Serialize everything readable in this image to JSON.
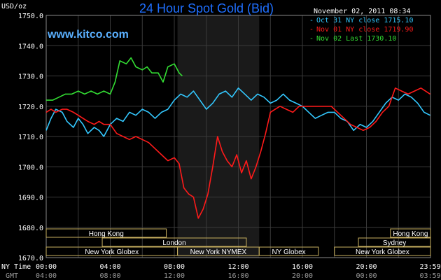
{
  "header": {
    "title": "24 Hour Spot Gold (Bid)",
    "site": "www.kitco.com",
    "timestamp": "November 02, 2011 08:34",
    "y_unit": "USD/oz"
  },
  "colors": {
    "background": "#000000",
    "grid": "#3a3a3a",
    "axis_text": "#ffffff",
    "title": "#1f6fff",
    "site": "#5ab0ff",
    "session_shade": "#1a1a1a",
    "session_border": "#c8b060"
  },
  "chart_data": {
    "type": "line",
    "title": "24 Hour Spot Gold (Bid)",
    "ylabel": "USD/oz",
    "ylim": [
      1670,
      1750
    ],
    "yticks": [
      "1670.0",
      "1680.0",
      "1690.0",
      "1700.0",
      "1710.0",
      "1720.0",
      "1730.0",
      "1740.0",
      "1750.0"
    ],
    "xlim": [
      0,
      24
    ],
    "x_row_label_ny": "NY Time",
    "x_row_label_gmt": "GMT",
    "xticks_ny": [
      "00:00",
      "04:00",
      "08:00",
      "12:00",
      "16:00",
      "20:00",
      "23:59"
    ],
    "xticks_gmt": [
      "04:00",
      "08:00",
      "12:00",
      "16:00",
      "20:00",
      "00:00",
      "03:59"
    ],
    "xtick_hours": [
      0,
      4,
      8,
      12,
      16,
      20,
      23.98
    ],
    "shaded_hours": [
      8.2,
      13.3
    ],
    "legend_position": "top-right",
    "series": [
      {
        "name": "Oct 31 NY close 1715.10",
        "color": "#33c8ff",
        "x": [
          0,
          0.3,
          0.6,
          1,
          1.3,
          1.7,
          2,
          2.3,
          2.6,
          3,
          3.3,
          3.6,
          4,
          4.4,
          4.8,
          5.2,
          5.6,
          6,
          6.4,
          6.8,
          7.2,
          7.6,
          8,
          8.4,
          8.8,
          9.2,
          9.6,
          10,
          10.4,
          10.8,
          11.2,
          11.6,
          12,
          12.4,
          12.8,
          13.2,
          13.6,
          14,
          14.4,
          14.8,
          15.2,
          15.6,
          16,
          16.4,
          16.8,
          17.2,
          17.6,
          18,
          18.4,
          18.8,
          19.2,
          19.6,
          20,
          20.4,
          20.8,
          21.2,
          21.6,
          22,
          22.4,
          22.8,
          23.2,
          23.6,
          23.98
        ],
        "y": [
          1712,
          1716,
          1719,
          1718,
          1715,
          1713,
          1716,
          1714,
          1711,
          1713,
          1712,
          1710,
          1714,
          1716,
          1715,
          1718,
          1717,
          1719,
          1718,
          1716,
          1718,
          1719,
          1722,
          1724,
          1723,
          1725,
          1722,
          1719,
          1721,
          1724,
          1725,
          1723,
          1726,
          1724,
          1722,
          1724,
          1723,
          1721,
          1722,
          1724,
          1722,
          1721,
          1720,
          1718,
          1716,
          1717,
          1718,
          1718,
          1716,
          1715,
          1712,
          1714,
          1713,
          1715,
          1718,
          1721,
          1723,
          1722,
          1724,
          1723,
          1721,
          1718,
          1717
        ]
      },
      {
        "name": "Nov 01 NY close 1719.90",
        "color": "#ff1a1a",
        "x": [
          0,
          0.3,
          0.6,
          1,
          1.3,
          1.7,
          2,
          2.3,
          2.6,
          3,
          3.3,
          3.6,
          4,
          4.4,
          4.8,
          5.2,
          5.6,
          6,
          6.4,
          6.8,
          7.2,
          7.6,
          8,
          8.3,
          8.6,
          8.9,
          9.2,
          9.5,
          9.8,
          10.1,
          10.4,
          10.7,
          11,
          11.3,
          11.6,
          11.9,
          12.2,
          12.5,
          12.8,
          13.1,
          13.4,
          13.7,
          14,
          14.3,
          14.6,
          15,
          15.4,
          15.8,
          16.2,
          16.6,
          17,
          17.4,
          17.8,
          18.2,
          18.6,
          19,
          19.4,
          19.8,
          20.2,
          20.6,
          21,
          21.4,
          21.8,
          22.2,
          22.6,
          23,
          23.4,
          23.98
        ],
        "y": [
          1718,
          1719,
          1718,
          1719,
          1719,
          1718,
          1717,
          1716,
          1715,
          1714,
          1715,
          1714,
          1714,
          1711,
          1710,
          1709,
          1710,
          1709,
          1708,
          1706,
          1704,
          1702,
          1703,
          1701,
          1693,
          1691,
          1690,
          1683,
          1686,
          1691,
          1700,
          1710,
          1705,
          1702,
          1700,
          1704,
          1698,
          1702,
          1696,
          1700,
          1705,
          1711,
          1718,
          1719,
          1720,
          1719,
          1718,
          1720,
          1720,
          1720,
          1720,
          1720,
          1720,
          1718,
          1716,
          1714,
          1713,
          1712,
          1713,
          1715,
          1718,
          1720,
          1726,
          1725,
          1724,
          1725,
          1726,
          1724
        ]
      },
      {
        "name": "Nov 02 Last 1730.10",
        "color": "#33dd33",
        "x": [
          0,
          0.4,
          0.8,
          1.2,
          1.6,
          2,
          2.4,
          2.8,
          3.2,
          3.6,
          4,
          4.3,
          4.6,
          5,
          5.3,
          5.6,
          6,
          6.3,
          6.6,
          7,
          7.3,
          7.6,
          8,
          8.3,
          8.5
        ],
        "y": [
          1722,
          1722,
          1723,
          1724,
          1724,
          1725,
          1724,
          1725,
          1724,
          1725,
          1724,
          1728,
          1735,
          1734,
          1736,
          1733,
          1732,
          1733,
          1731,
          1731,
          1728,
          1733,
          1734,
          1731,
          1730
        ]
      }
    ]
  },
  "sessions": [
    {
      "label": "Hong Kong",
      "row": 1,
      "start": 0,
      "end": 7.5
    },
    {
      "label": "London",
      "row": 2,
      "start": 3.5,
      "end": 12.5
    },
    {
      "label": "New York Globex",
      "row": 3,
      "start": 0,
      "end": 8.2
    },
    {
      "label": "New York NYMEX",
      "row": 3,
      "start": 8.2,
      "end": 13.3
    },
    {
      "label": "NY Globex",
      "row": 3,
      "start": 13.3,
      "end": 17
    },
    {
      "label": "Hong Kong",
      "row": 1,
      "start": 21.5,
      "end": 24
    },
    {
      "label": "Sydney",
      "row": 2,
      "start": 19.5,
      "end": 24
    },
    {
      "label": "New York Globex",
      "row": 3,
      "start": 18,
      "end": 24
    }
  ]
}
